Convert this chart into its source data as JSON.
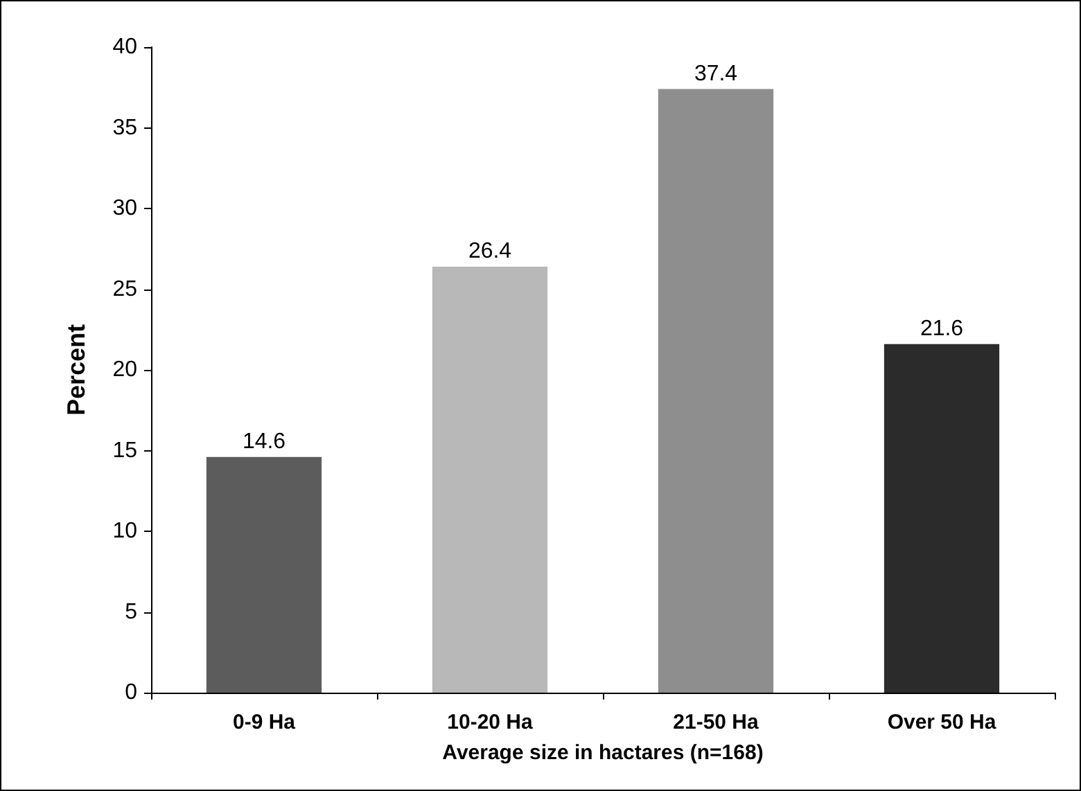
{
  "chart_data": {
    "type": "bar",
    "xlabel": "Average size in hactares (n=168)",
    "ylabel": "Percent",
    "categories": [
      "0-9 Ha",
      "10-20 Ha",
      "21-50 Ha",
      "Over 50 Ha"
    ],
    "values": [
      14.6,
      26.4,
      37.4,
      21.6
    ],
    "colors": [
      "#5c5c5c",
      "#b8b8b8",
      "#8e8e8e",
      "#2b2b2b"
    ],
    "ylim": [
      0,
      40
    ],
    "yticks": [
      0,
      5,
      10,
      15,
      20,
      25,
      30,
      35,
      40
    ],
    "grid": false,
    "data_labels": true
  }
}
